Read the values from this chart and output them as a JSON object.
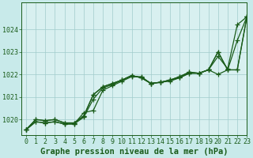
{
  "title": "Graphe pression niveau de la mer (hPa)",
  "bg_color": "#c8eaea",
  "plot_bg_color": "#d8f0f0",
  "line_color": "#1a5c1a",
  "grid_color": "#a0cccc",
  "xlim": [
    -0.5,
    23
  ],
  "ylim": [
    1019.3,
    1025.2
  ],
  "yticks": [
    1020,
    1021,
    1022,
    1023,
    1024
  ],
  "xticks": [
    0,
    1,
    2,
    3,
    4,
    5,
    6,
    7,
    8,
    9,
    10,
    11,
    12,
    13,
    14,
    15,
    16,
    17,
    18,
    19,
    20,
    21,
    22,
    23
  ],
  "series": [
    [
      1019.55,
      1019.9,
      1019.85,
      1019.9,
      1019.8,
      1019.8,
      1020.3,
      1020.4,
      1021.3,
      1021.5,
      1021.7,
      1021.9,
      1021.9,
      1021.6,
      1021.65,
      1021.7,
      1021.85,
      1022.05,
      1022.05,
      1022.2,
      1022.8,
      1022.25,
      1024.2,
      1024.55
    ],
    [
      1019.55,
      1019.9,
      1019.85,
      1019.9,
      1019.8,
      1019.8,
      1020.1,
      1020.9,
      1021.4,
      1021.55,
      1021.75,
      1021.95,
      1021.85,
      1021.6,
      1021.65,
      1021.75,
      1021.85,
      1022.05,
      1022.05,
      1022.2,
      1022.0,
      1022.2,
      1022.2,
      1024.55
    ],
    [
      1019.55,
      1020.0,
      1019.95,
      1020.0,
      1019.85,
      1019.85,
      1020.15,
      1021.1,
      1021.45,
      1021.6,
      1021.75,
      1021.95,
      1021.85,
      1021.6,
      1021.65,
      1021.75,
      1021.9,
      1022.1,
      1022.05,
      1022.2,
      1023.0,
      1022.2,
      1023.5,
      1024.55
    ],
    [
      1019.55,
      1020.0,
      1019.95,
      1020.0,
      1019.85,
      1019.85,
      1020.15,
      1021.1,
      1021.45,
      1021.6,
      1021.75,
      1021.95,
      1021.85,
      1021.6,
      1021.65,
      1021.75,
      1021.9,
      1022.1,
      1022.05,
      1022.2,
      1023.0,
      1022.2,
      1022.2,
      1024.55
    ]
  ],
  "marker": "+",
  "marker_size": 4,
  "line_width": 0.9,
  "title_fontsize": 7.5,
  "tick_fontsize": 6.0,
  "ylabel_pad": 2
}
